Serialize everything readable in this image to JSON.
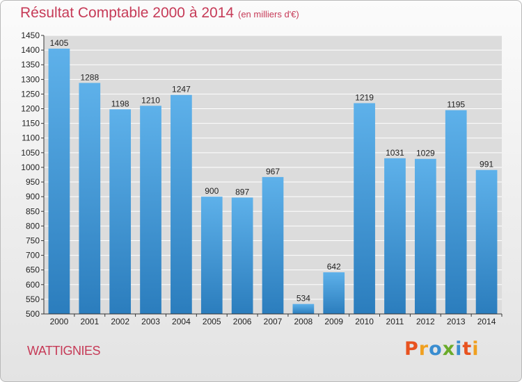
{
  "header": {
    "title": "Résultat Comptable 2000 à 2014",
    "subtitle": "(en milliers d'€)"
  },
  "footer": {
    "place": "WATTIGNIES",
    "brand": "Proxiti"
  },
  "colors": {
    "title": "#c63a57",
    "bar_top": "#5eb1ea",
    "bar_bottom": "#2b7dbd",
    "plot_bg": "#dcdcdc",
    "grid": "#ffffff",
    "brand": [
      "#e8521f",
      "#f0a020",
      "#3a8dd0",
      "#6aab2a",
      "#3a8dd0",
      "#e8521f",
      "#f0a020"
    ]
  },
  "chart_data": {
    "type": "bar",
    "title": "Résultat Comptable 2000 à 2014",
    "subtitle": "(en milliers d'€)",
    "categories": [
      "2000",
      "2001",
      "2002",
      "2003",
      "2004",
      "2005",
      "2006",
      "2007",
      "2008",
      "2009",
      "2010",
      "2011",
      "2012",
      "2013",
      "2014"
    ],
    "values": [
      1405,
      1288,
      1198,
      1210,
      1247,
      900,
      897,
      967,
      534,
      642,
      1219,
      1031,
      1029,
      1195,
      991
    ],
    "ylim": [
      500,
      1450
    ],
    "yticks": [
      500,
      550,
      600,
      650,
      700,
      750,
      800,
      850,
      900,
      950,
      1000,
      1050,
      1100,
      1150,
      1200,
      1250,
      1300,
      1350,
      1400,
      1450
    ],
    "grid": true,
    "data_labels": true,
    "legend": "none"
  }
}
